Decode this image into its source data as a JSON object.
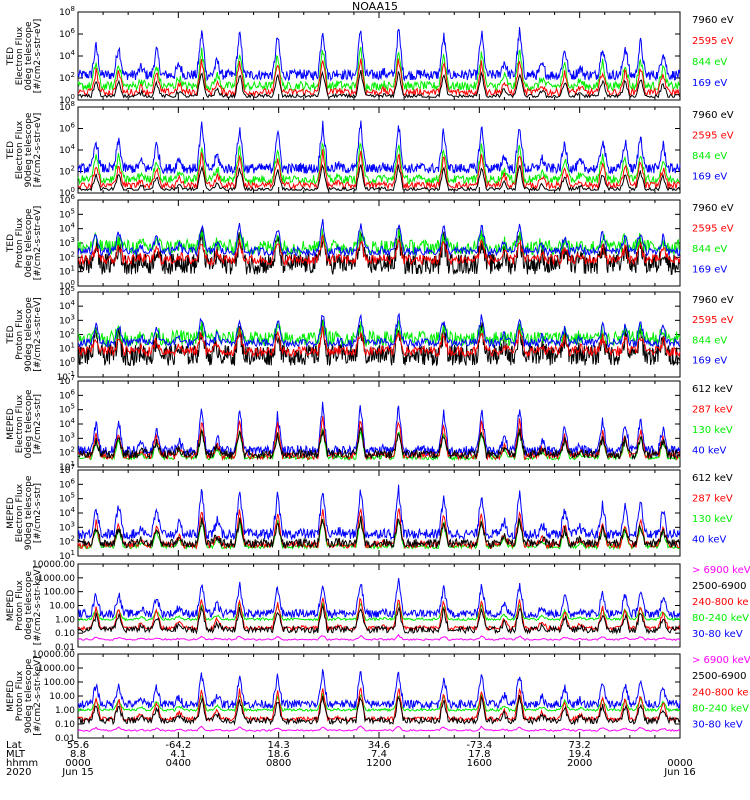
{
  "title": "NOAA15",
  "colors": {
    "blue": "#0000ff",
    "red": "#ff0000",
    "green": "#00ee00",
    "black": "#000000",
    "magenta": "#ff00ff"
  },
  "panels": [
    {
      "ylabel": [
        "TED",
        "Electron Flux",
        "0deg telescope",
        "[#/cm2-s-str-eV]"
      ],
      "ticks": [
        {
          "v": "10",
          "e": "0"
        },
        {
          "v": "10",
          "e": "2"
        },
        {
          "v": "10",
          "e": "4"
        },
        {
          "v": "10",
          "e": "6"
        },
        {
          "v": "10",
          "e": "8"
        }
      ],
      "legend": [
        {
          "t": "7960 eV",
          "c": "black"
        },
        {
          "t": "2595 eV",
          "c": "red"
        },
        {
          "t": "844 eV",
          "c": "green"
        },
        {
          "t": "169 eV",
          "c": "blue"
        }
      ]
    },
    {
      "ylabel": [
        "TED",
        "Electron Flux",
        "90deg telescope",
        "[#/cm2-s-str-eV]"
      ],
      "ticks": [
        {
          "v": "10",
          "e": "0"
        },
        {
          "v": "10",
          "e": "2"
        },
        {
          "v": "10",
          "e": "4"
        },
        {
          "v": "10",
          "e": "6"
        },
        {
          "v": "10",
          "e": "8"
        }
      ],
      "legend": [
        {
          "t": "7960 eV",
          "c": "black"
        },
        {
          "t": "2595 eV",
          "c": "red"
        },
        {
          "t": "844 eV",
          "c": "green"
        },
        {
          "t": "169 eV",
          "c": "blue"
        }
      ]
    },
    {
      "ylabel": [
        "TED",
        "Proton Flux",
        "0deg telescope",
        "[#/cm2-s-str-eV]"
      ],
      "ticks": [
        {
          "v": "10",
          "e": "0"
        },
        {
          "v": "10",
          "e": "1"
        },
        {
          "v": "10",
          "e": "2"
        },
        {
          "v": "10",
          "e": "3"
        },
        {
          "v": "10",
          "e": "4"
        },
        {
          "v": "10",
          "e": "5"
        },
        {
          "v": "10",
          "e": "6"
        }
      ],
      "legend": [
        {
          "t": "7960 eV",
          "c": "black"
        },
        {
          "t": "2595 eV",
          "c": "red"
        },
        {
          "t": "844 eV",
          "c": "green"
        },
        {
          "t": "169 eV",
          "c": "blue"
        }
      ]
    },
    {
      "ylabel": [
        "TED",
        "Proton Flux",
        "90deg telescope",
        "[#/cm2-s-str-eV]"
      ],
      "ticks": [
        {
          "v": "10",
          "e": "-1"
        },
        {
          "v": "10",
          "e": "0"
        },
        {
          "v": "10",
          "e": "1"
        },
        {
          "v": "10",
          "e": "2"
        },
        {
          "v": "10",
          "e": "3"
        },
        {
          "v": "10",
          "e": "4"
        },
        {
          "v": "10",
          "e": "5"
        }
      ],
      "legend": [
        {
          "t": "7960 eV",
          "c": "black"
        },
        {
          "t": "2595 eV",
          "c": "red"
        },
        {
          "t": "844 eV",
          "c": "green"
        },
        {
          "t": "169 eV",
          "c": "blue"
        }
      ]
    },
    {
      "ylabel": [
        "MEPED",
        "Electron Flux",
        "0deg telescope",
        "[#/cm2-s-str]"
      ],
      "ticks": [
        {
          "v": "10",
          "e": "1"
        },
        {
          "v": "10",
          "e": "2"
        },
        {
          "v": "10",
          "e": "3"
        },
        {
          "v": "10",
          "e": "4"
        },
        {
          "v": "10",
          "e": "5"
        },
        {
          "v": "10",
          "e": "6"
        },
        {
          "v": "10",
          "e": "7"
        }
      ],
      "legend": [
        {
          "t": "612 keV",
          "c": "black"
        },
        {
          "t": "287 keV",
          "c": "red"
        },
        {
          "t": "130 keV",
          "c": "green"
        },
        {
          "t": "40 keV",
          "c": "blue"
        }
      ]
    },
    {
      "ylabel": [
        "MEPED",
        "Electron Flux",
        "90deg telescope",
        "[#/cm2-s-str]"
      ],
      "ticks": [
        {
          "v": "10",
          "e": "1"
        },
        {
          "v": "10",
          "e": "2"
        },
        {
          "v": "10",
          "e": "3"
        },
        {
          "v": "10",
          "e": "4"
        },
        {
          "v": "10",
          "e": "5"
        },
        {
          "v": "10",
          "e": "6"
        },
        {
          "v": "10",
          "e": "7"
        }
      ],
      "legend": [
        {
          "t": "612 keV",
          "c": "black"
        },
        {
          "t": "287 keV",
          "c": "red"
        },
        {
          "t": "130 keV",
          "c": "green"
        },
        {
          "t": "40 keV",
          "c": "blue"
        }
      ]
    },
    {
      "ylabel": [
        "MEPED",
        "Proton Flux",
        "0deg telescope",
        "[#/cm2-s-str-keV]"
      ],
      "ticks": [
        {
          "v": "0.01",
          "e": ""
        },
        {
          "v": "0.10",
          "e": ""
        },
        {
          "v": "1.00",
          "e": ""
        },
        {
          "v": "10.00",
          "e": ""
        },
        {
          "v": "100.00",
          "e": ""
        },
        {
          "v": "1000.00",
          "e": ""
        },
        {
          "v": "10000.00",
          "e": ""
        }
      ],
      "legend": [
        {
          "t": "> 6900 keV",
          "c": "magenta"
        },
        {
          "t": "2500-6900",
          "c": "black"
        },
        {
          "t": "240-800 ke",
          "c": "red"
        },
        {
          "t": "80-240 keV",
          "c": "green"
        },
        {
          "t": "30-80 keV",
          "c": "blue"
        }
      ]
    },
    {
      "ylabel": [
        "MEPED",
        "Proton Flux",
        "90deg telescope",
        "[#/cm2-s-str-keV]"
      ],
      "ticks": [
        {
          "v": "0.01",
          "e": ""
        },
        {
          "v": "0.10",
          "e": ""
        },
        {
          "v": "1.00",
          "e": ""
        },
        {
          "v": "10.00",
          "e": ""
        },
        {
          "v": "100.00",
          "e": ""
        },
        {
          "v": "1000.00",
          "e": ""
        },
        {
          "v": "10000.00",
          "e": ""
        }
      ],
      "legend": [
        {
          "t": "> 6900 keV",
          "c": "magenta"
        },
        {
          "t": "2500-6900",
          "c": "black"
        },
        {
          "t": "240-800 ke",
          "c": "red"
        },
        {
          "t": "80-240 keV",
          "c": "green"
        },
        {
          "t": "30-80 keV",
          "c": "blue"
        }
      ]
    }
  ],
  "xaxis": {
    "rowlabels": [
      "Lat",
      "MLT",
      "hhmm",
      "2020"
    ],
    "columns": [
      {
        "lat": "55.6",
        "mlt": "8.8",
        "hhmm": "0000",
        "date": "Jun 15"
      },
      {
        "lat": "-64.2",
        "mlt": "4.1",
        "hhmm": "0400",
        "date": ""
      },
      {
        "lat": "14.3",
        "mlt": "18.6",
        "hhmm": "0800",
        "date": ""
      },
      {
        "lat": "34.6",
        "mlt": "7.4",
        "hhmm": "1200",
        "date": ""
      },
      {
        "lat": "-73.4",
        "mlt": "17.8",
        "hhmm": "1600",
        "date": ""
      },
      {
        "lat": "73.2",
        "mlt": "19.4",
        "hhmm": "2000",
        "date": ""
      },
      {
        "lat": "",
        "mlt": "",
        "hhmm": "0000",
        "date": "Jun 16"
      }
    ]
  },
  "chart_data": {
    "type": "line",
    "title": "NOAA15",
    "x_range": [
      "2020-06-15 00:00",
      "2020-06-16 00:00"
    ],
    "y_scale": "log",
    "panels": [
      {
        "name": "TED Electron Flux 0deg",
        "ylim": [
          1,
          100000000.0
        ],
        "series": [
          "169 eV",
          "844 eV",
          "2595 eV",
          "7960 eV"
        ]
      },
      {
        "name": "TED Electron Flux 90deg",
        "ylim": [
          1,
          100000000.0
        ],
        "series": [
          "169 eV",
          "844 eV",
          "2595 eV",
          "7960 eV"
        ]
      },
      {
        "name": "TED Proton Flux 0deg",
        "ylim": [
          1,
          1000000.0
        ],
        "series": [
          "169 eV",
          "844 eV",
          "2595 eV",
          "7960 eV"
        ]
      },
      {
        "name": "TED Proton Flux 90deg",
        "ylim": [
          0.1,
          100000.0
        ],
        "series": [
          "169 eV",
          "844 eV",
          "2595 eV",
          "7960 eV"
        ]
      },
      {
        "name": "MEPED Electron Flux 0deg",
        "ylim": [
          10,
          10000000.0
        ],
        "series": [
          "40 keV",
          "130 keV",
          "287 keV",
          "612 keV"
        ]
      },
      {
        "name": "MEPED Electron Flux 90deg",
        "ylim": [
          10,
          10000000.0
        ],
        "series": [
          "40 keV",
          "130 keV",
          "287 keV",
          "612 keV"
        ]
      },
      {
        "name": "MEPED Proton Flux 0deg",
        "ylim": [
          0.01,
          10000
        ],
        "series": [
          "30-80 keV",
          "80-240 keV",
          "240-800 keV",
          "2500-6900 keV",
          "> 6900 keV"
        ]
      },
      {
        "name": "MEPED Proton Flux 90deg",
        "ylim": [
          0.01,
          10000
        ],
        "series": [
          "30-80 keV",
          "80-240 keV",
          "240-800 keV",
          "2500-6900 keV",
          "> 6900 keV"
        ]
      }
    ]
  }
}
